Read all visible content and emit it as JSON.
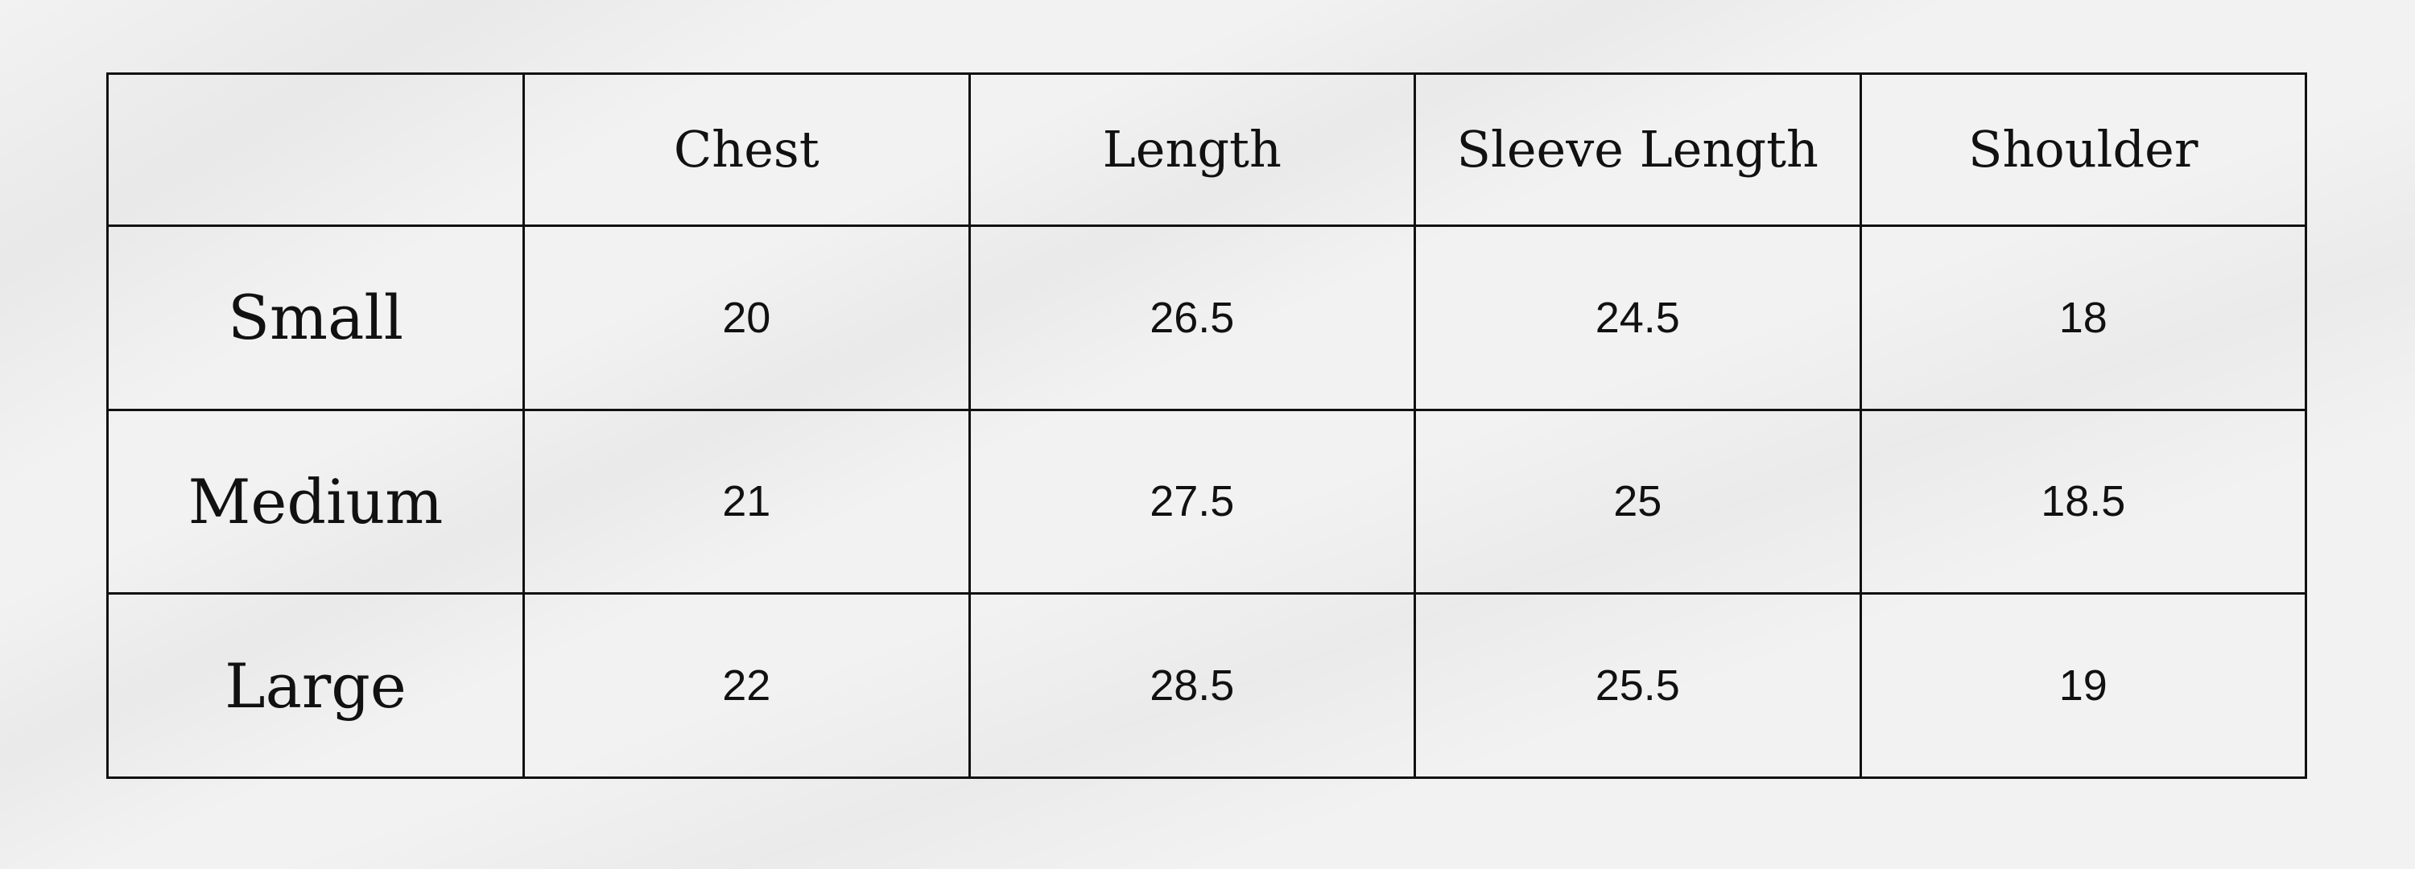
{
  "table": {
    "headers": [
      "",
      "Chest",
      "Length",
      "Sleeve Length",
      "Shoulder"
    ],
    "rows": [
      {
        "label": "Small",
        "values": [
          "20",
          "26.5",
          "24.5",
          "18"
        ]
      },
      {
        "label": "Medium",
        "values": [
          "21",
          "27.5",
          "25",
          "18.5"
        ]
      },
      {
        "label": "Large",
        "values": [
          "22",
          "28.5",
          "25.5",
          "19"
        ]
      }
    ]
  },
  "colors": {
    "background": "#f2f2f2",
    "border": "#111111",
    "text": "#111111"
  }
}
